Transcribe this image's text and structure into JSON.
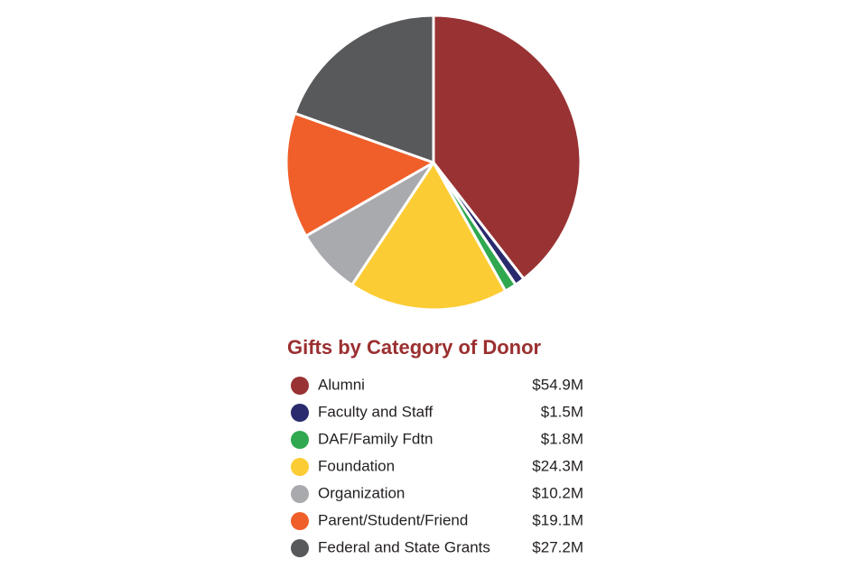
{
  "chart_data": {
    "type": "pie",
    "title": "Gifts by Category of Donor",
    "categories": [
      "Alumni",
      "Faculty and Staff",
      "DAF/Family Fdtn",
      "Foundation",
      "Organization",
      "Parent/Student/Friend",
      "Federal and State Grants"
    ],
    "values": [
      54.9,
      1.5,
      1.8,
      24.3,
      10.2,
      19.1,
      27.2
    ],
    "value_labels": [
      "$54.9M",
      "$1.5M",
      "$1.8M",
      "$24.3M",
      "$10.2M",
      "$19.1M",
      "$27.2M"
    ],
    "colors": [
      "#993233",
      "#2a2a6e",
      "#2fa84f",
      "#fccc34",
      "#a9aaad",
      "#f05f2a",
      "#58595b"
    ]
  }
}
